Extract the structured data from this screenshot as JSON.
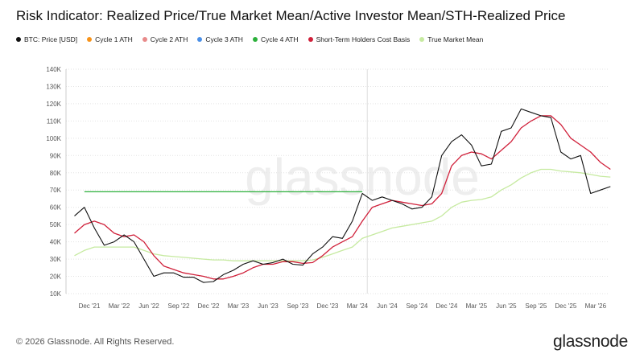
{
  "title": "Risk Indicator: Realized Price/True Market Mean/Active Investor Mean/STH-Realized Price",
  "footer": "© 2026 Glassnode. All Rights Reserved.",
  "brand": "glassnode",
  "watermark": "glassnode",
  "chart_data": {
    "type": "line",
    "title": "Risk Indicator: Realized Price/True Market Mean/Active Investor Mean/STH-Realized Price",
    "legend_position": "top-left",
    "grid": true,
    "y_ticks": [
      "10K",
      "20K",
      "30K",
      "40K",
      "50K",
      "60K",
      "70K",
      "80K",
      "90K",
      "100K",
      "110K",
      "120K",
      "130K",
      "140K"
    ],
    "ylim": [
      10000,
      140000
    ],
    "x_ticks": [
      "Dec '21",
      "Mar '22",
      "Jun '22",
      "Sep '22",
      "Dec '22",
      "Mar '23",
      "Jun '23",
      "Sep '23",
      "Dec '23",
      "Mar '24",
      "Jun '24",
      "Sep '24",
      "Dec '24",
      "Mar '25",
      "Jun '25",
      "Sep '25",
      "Dec '25",
      "Mar '26"
    ],
    "legend": [
      {
        "name": "BTC: Price [USD]",
        "color": "#111111"
      },
      {
        "name": "Cycle 1 ATH",
        "color": "#f7931a"
      },
      {
        "name": "Cycle 2 ATH",
        "color": "#e88a8a"
      },
      {
        "name": "Cycle 3 ATH",
        "color": "#4a8fe7"
      },
      {
        "name": "Cycle 4 ATH",
        "color": "#2bb03a"
      },
      {
        "name": "Short-Term Holders Cost Basis",
        "color": "#d0203a"
      },
      {
        "name": "True Market Mean",
        "color": "#c6eaa0"
      }
    ],
    "x": [
      "2021-10",
      "2021-11",
      "2021-12",
      "2022-01",
      "2022-02",
      "2022-03",
      "2022-04",
      "2022-05",
      "2022-06",
      "2022-07",
      "2022-08",
      "2022-09",
      "2022-10",
      "2022-11",
      "2022-12",
      "2023-01",
      "2023-02",
      "2023-03",
      "2023-04",
      "2023-05",
      "2023-06",
      "2023-07",
      "2023-08",
      "2023-09",
      "2023-10",
      "2023-11",
      "2023-12",
      "2024-01",
      "2024-02",
      "2024-03",
      "2024-04",
      "2024-05",
      "2024-06",
      "2024-07",
      "2024-08",
      "2024-09",
      "2024-10",
      "2024-11",
      "2024-12",
      "2025-01",
      "2025-02",
      "2025-03",
      "2025-04",
      "2025-05",
      "2025-06",
      "2025-07",
      "2025-08",
      "2025-09",
      "2025-10",
      "2025-11",
      "2025-12",
      "2026-01",
      "2026-02",
      "2026-03",
      "2026-04"
    ],
    "series": [
      {
        "name": "BTC: Price [USD]",
        "color": "#111111",
        "values": [
          55000,
          60000,
          48000,
          38000,
          40000,
          44000,
          40000,
          30000,
          20000,
          22000,
          22000,
          19500,
          19500,
          16500,
          17000,
          21000,
          23500,
          27000,
          29000,
          27000,
          28000,
          30000,
          27000,
          26500,
          33000,
          37000,
          43000,
          42000,
          52000,
          68000,
          64000,
          66000,
          64000,
          62000,
          59000,
          60000,
          66000,
          90000,
          98000,
          102000,
          96000,
          84000,
          85000,
          104000,
          106000,
          117000,
          115000,
          113000,
          112000,
          92000,
          88000,
          90000,
          68000,
          70000,
          72000
        ]
      },
      {
        "name": "Short-Term Holders Cost Basis",
        "color": "#d0203a",
        "values": [
          45000,
          50000,
          52000,
          50000,
          45000,
          43000,
          44000,
          40000,
          32000,
          26000,
          24000,
          22000,
          21000,
          20000,
          18500,
          18500,
          20000,
          22000,
          25000,
          27000,
          27000,
          28500,
          28500,
          27500,
          28000,
          32000,
          37000,
          40000,
          43000,
          52000,
          60000,
          62000,
          64000,
          63000,
          62000,
          61000,
          62000,
          68000,
          84000,
          90000,
          92000,
          91000,
          88000,
          93000,
          98000,
          106000,
          110000,
          113000,
          113000,
          108000,
          100000,
          96000,
          92000,
          86000,
          82000
        ]
      },
      {
        "name": "True Market Mean",
        "color": "#c6eaa0",
        "values": [
          32000,
          35000,
          37000,
          37000,
          37000,
          37000,
          37000,
          35000,
          33000,
          32000,
          31500,
          31000,
          30500,
          30000,
          29500,
          29500,
          29000,
          29000,
          29000,
          29000,
          29000,
          29000,
          29000,
          29000,
          29500,
          31000,
          33000,
          35000,
          37000,
          42000,
          44000,
          46000,
          48000,
          49000,
          50000,
          51000,
          52000,
          55000,
          60000,
          63000,
          64000,
          64500,
          66000,
          70000,
          73000,
          77000,
          80000,
          82000,
          82000,
          81000,
          80500,
          80000,
          79000,
          78000,
          77500
        ]
      }
    ],
    "cycle_4_ath": {
      "value": 69000,
      "from": "2021-11",
      "to": "2024-03"
    },
    "marker_date": "2024-04"
  }
}
